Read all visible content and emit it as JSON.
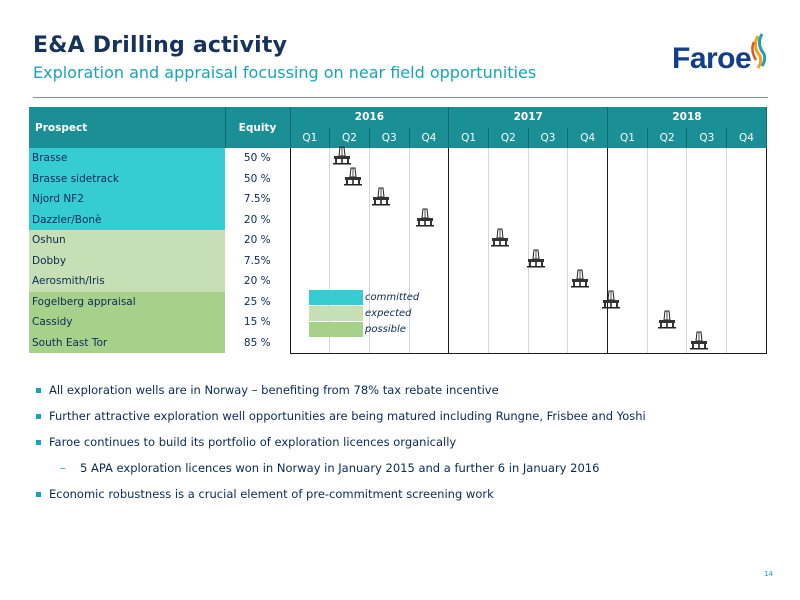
{
  "slide": {
    "title": "E&A Drilling activity",
    "subtitle": "Exploration and appraisal focussing on near field opportunities",
    "page_number": "14",
    "logo_text": "Faroe"
  },
  "table": {
    "header": {
      "prospect": "Prospect",
      "equity": "Equity"
    },
    "years": [
      "2016",
      "2017",
      "2018"
    ],
    "quarters": [
      "Q1",
      "Q2",
      "Q3",
      "Q4"
    ],
    "rows": [
      {
        "prospect": "Brasse",
        "equity": "50 %",
        "status": "committed",
        "rig_quarter": 1.3
      },
      {
        "prospect": "Brasse sidetrack",
        "equity": "50 %",
        "status": "committed",
        "rig_quarter": 1.6
      },
      {
        "prospect": "Njord NF2",
        "equity": "7.5%",
        "status": "committed",
        "rig_quarter": 2.3
      },
      {
        "prospect": "Dazzler/Bonè",
        "equity": "20 %",
        "status": "committed",
        "rig_quarter": 3.4
      },
      {
        "prospect": "Oshun",
        "equity": "20 %",
        "status": "expected",
        "rig_quarter": 5.3
      },
      {
        "prospect": "Dobby",
        "equity": "7.5%",
        "status": "expected",
        "rig_quarter": 6.2
      },
      {
        "prospect": "Aerosmith/Iris",
        "equity": "20 %",
        "status": "expected",
        "rig_quarter": 7.3
      },
      {
        "prospect": "Fogelberg appraisal",
        "equity": "25 %",
        "status": "possible",
        "rig_quarter": 8.1
      },
      {
        "prospect": "Cassidy",
        "equity": "15 %",
        "status": "possible",
        "rig_quarter": 9.5
      },
      {
        "prospect": "South East Tor",
        "equity": "85 %",
        "status": "possible",
        "rig_quarter": 10.3
      }
    ]
  },
  "legend": [
    {
      "label": "committed",
      "status": "committed"
    },
    {
      "label": "expected",
      "status": "expected"
    },
    {
      "label": "possible",
      "status": "possible"
    }
  ],
  "bullets": [
    "All exploration wells are in Norway – benefiting from 78% tax rebate incentive",
    "Further attractive exploration well opportunities are being matured including Rungne, Frisbee and Yoshi",
    "Faroe continues to build its portfolio of exploration licences organically"
  ],
  "sub_bullet": "5 APA exploration licences won in Norway in January 2015 and a further 6 in January 2016",
  "final_bullet": "Economic robustness is a crucial element of pre-commitment screening work",
  "colors": {
    "committed": "#36cdd2",
    "expected": "#c7dfb4",
    "possible": "#a7d18b",
    "header": "#1a8f95",
    "accent": "#1aa3b8",
    "title": "#16335c"
  },
  "icons": {
    "rig": "drilling-rig-icon",
    "bullet": "square-bullet-icon"
  }
}
